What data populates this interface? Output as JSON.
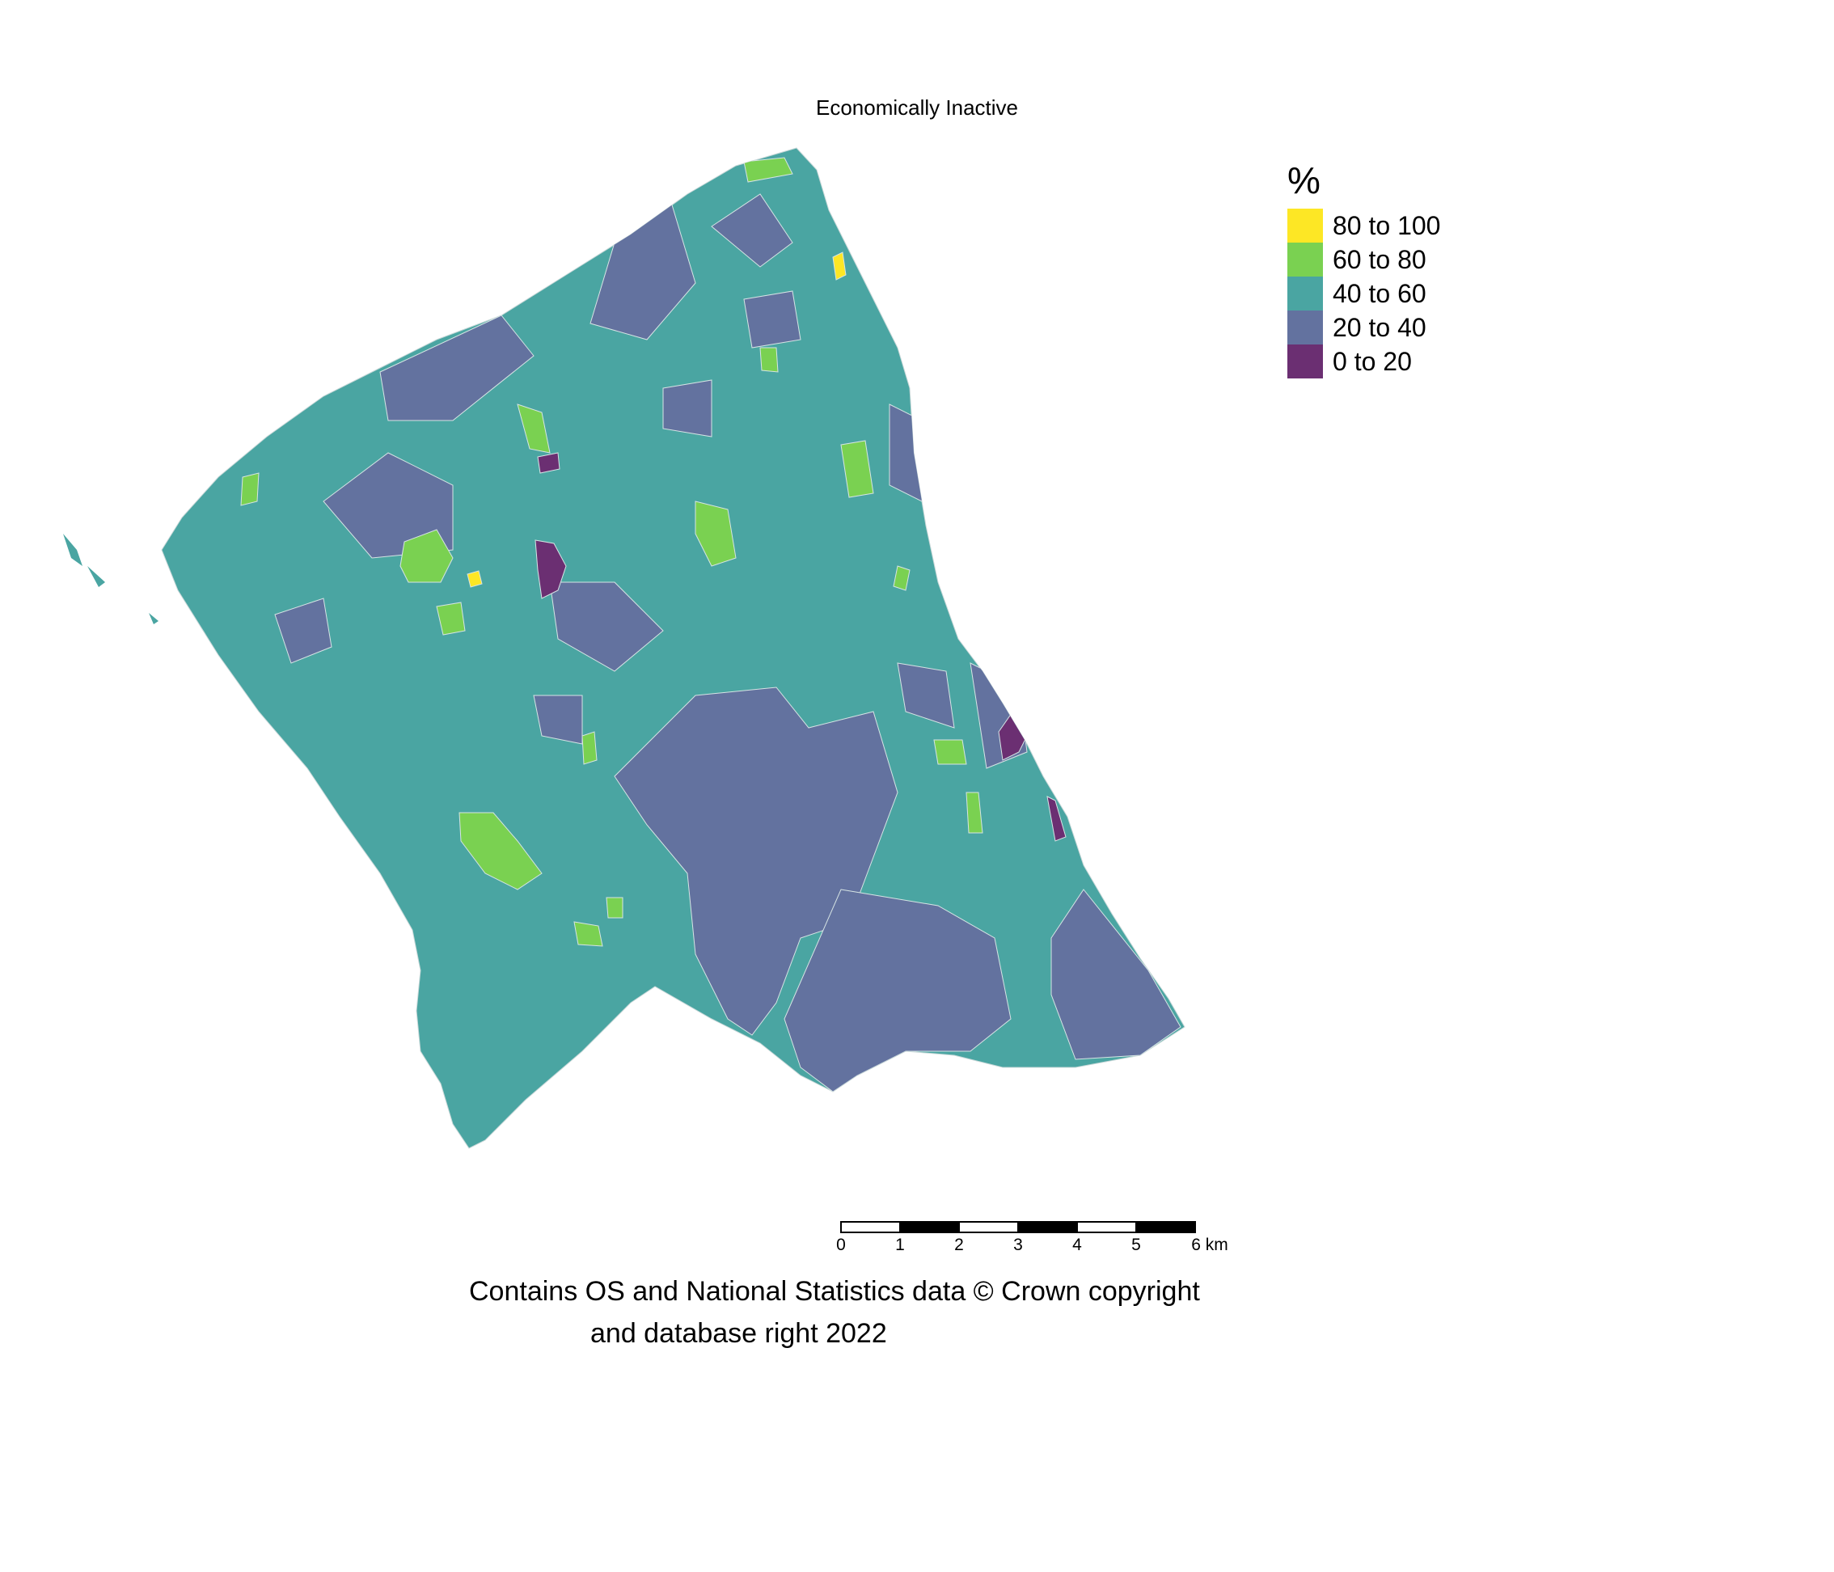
{
  "title": "Economically Inactive",
  "legend": {
    "title": "%",
    "items": [
      {
        "label": "80 to 100",
        "color": "#fde725"
      },
      {
        "label": "60 to 80",
        "color": "#7ad151"
      },
      {
        "label": "40 to 60",
        "color": "#4aa5a2"
      },
      {
        "label": "20 to 40",
        "color": "#63729f"
      },
      {
        "label": "0 to 20",
        "color": "#6b2f72"
      }
    ]
  },
  "scale_bar": {
    "ticks": [
      "0",
      "1",
      "2",
      "3",
      "4",
      "5",
      "6 km"
    ]
  },
  "credit": {
    "line1": "Contains OS and National Statistics data © Crown copyright",
    "line2": "and database right 2022"
  }
}
